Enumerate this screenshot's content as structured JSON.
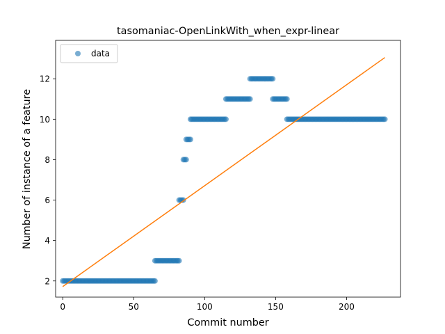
{
  "chart_data": {
    "type": "scatter",
    "title": "tasomaniac-OpenLinkWith_when_expr-linear",
    "xlabel": "Commit number",
    "ylabel": "Number of instance of a feature",
    "xlim": [
      -5,
      238
    ],
    "ylim": [
      1.2,
      13.9
    ],
    "xticks": [
      0,
      50,
      100,
      150,
      200
    ],
    "yticks": [
      2,
      4,
      6,
      8,
      10,
      12
    ],
    "grid": false,
    "legend": {
      "position": "top-left",
      "entries": [
        "data"
      ]
    },
    "series": [
      {
        "name": "data",
        "style": "markers",
        "color": "#1f77b4",
        "segments": [
          {
            "x_start": 0,
            "x_end": 65,
            "y": 2
          },
          {
            "x_start": 65,
            "x_end": 82,
            "y": 3
          },
          {
            "x_start": 82,
            "x_end": 85,
            "y": 6
          },
          {
            "x_start": 85,
            "x_end": 87,
            "y": 8
          },
          {
            "x_start": 87,
            "x_end": 90,
            "y": 9
          },
          {
            "x_start": 90,
            "x_end": 115,
            "y": 10
          },
          {
            "x_start": 115,
            "x_end": 132,
            "y": 11
          },
          {
            "x_start": 132,
            "x_end": 148,
            "y": 12
          },
          {
            "x_start": 148,
            "x_end": 158,
            "y": 11
          },
          {
            "x_start": 158,
            "x_end": 227,
            "y": 10
          }
        ]
      },
      {
        "style": "line",
        "color": "#ff7f0e",
        "points": [
          [
            0,
            1.72
          ],
          [
            227,
            13.05
          ]
        ]
      }
    ]
  }
}
